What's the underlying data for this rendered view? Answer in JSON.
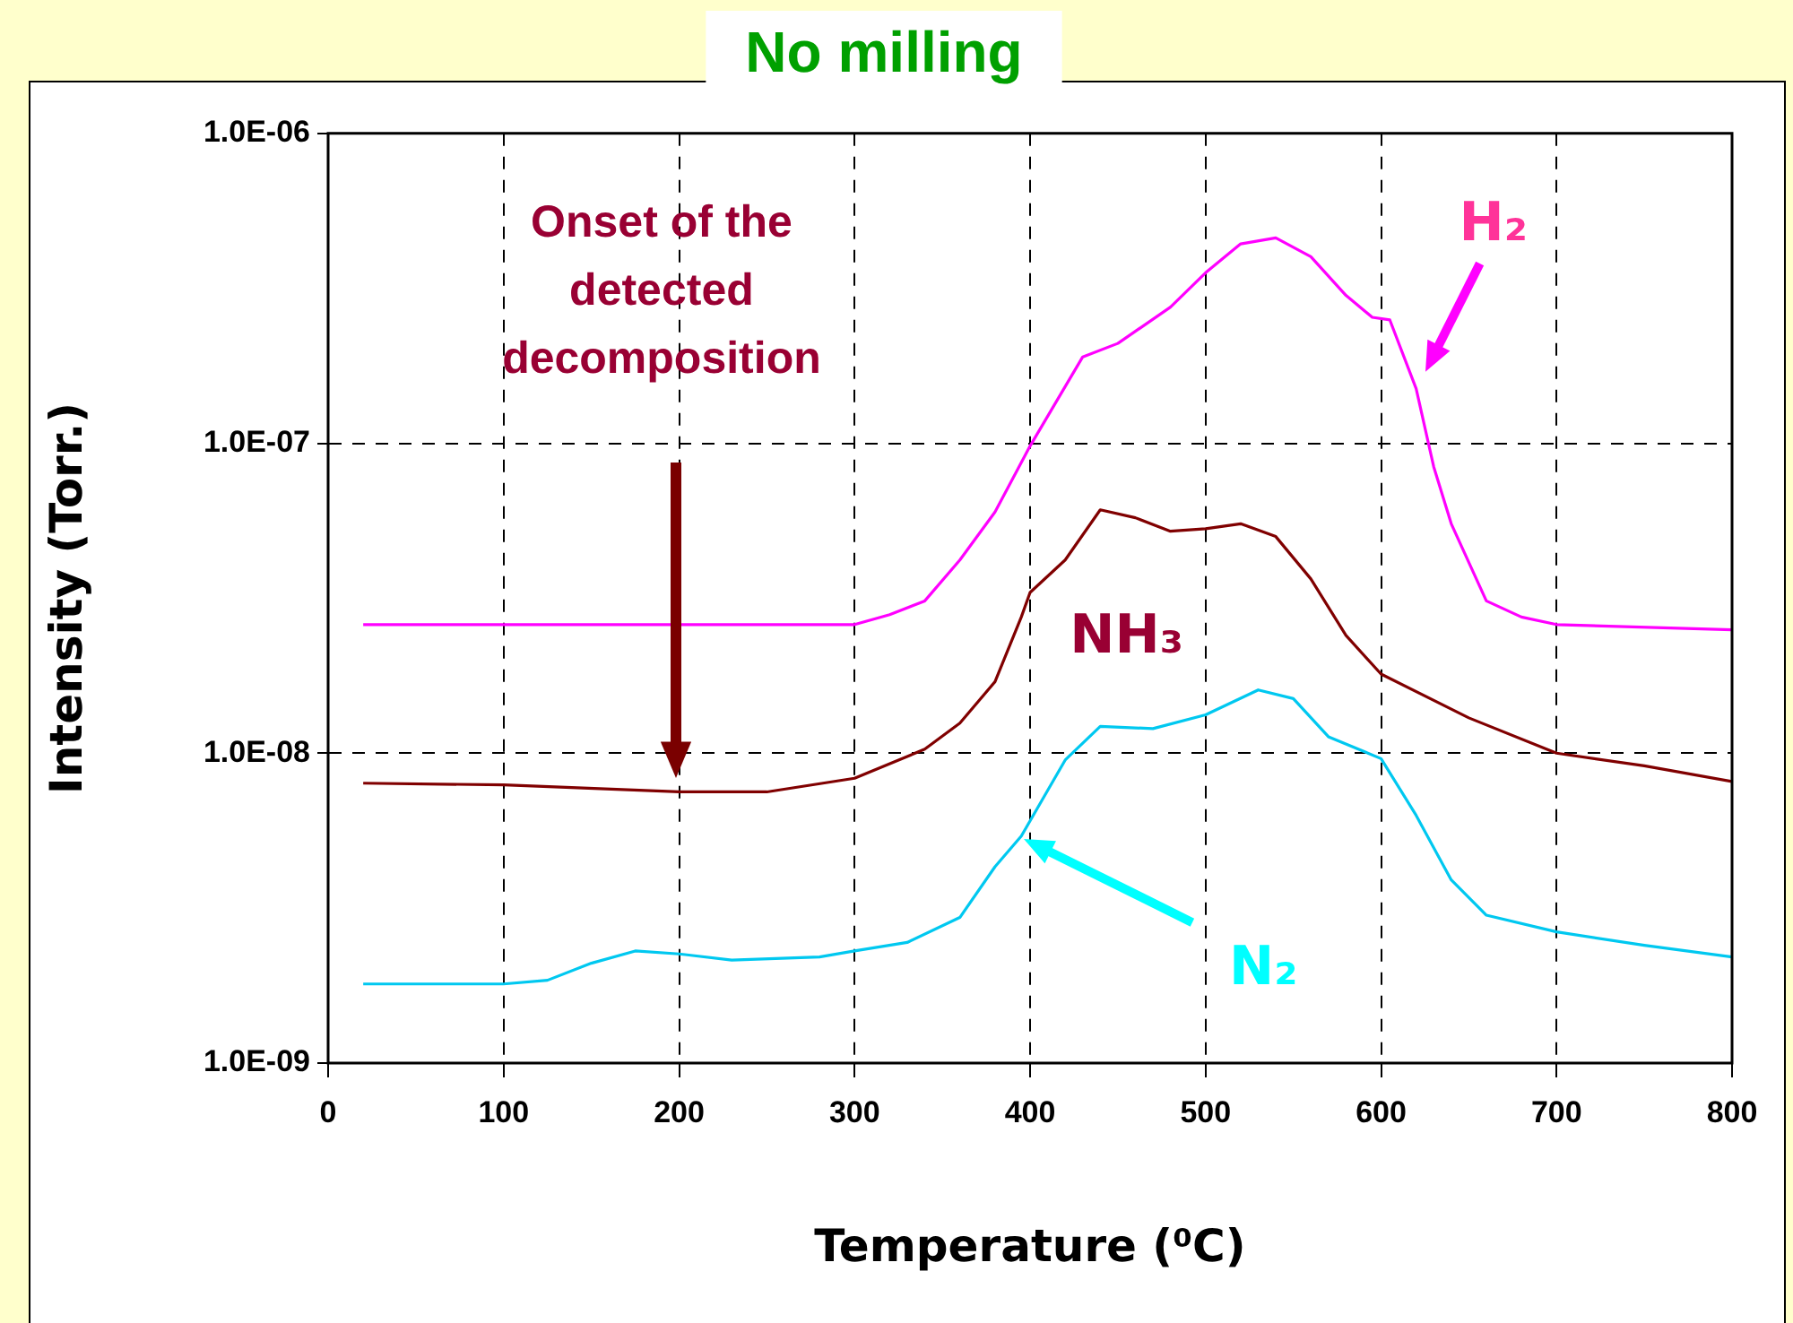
{
  "chart_data": {
    "type": "line",
    "title": "No milling",
    "xlabel": "Temperature (⁰C)",
    "ylabel": "Intensity (Torr.)",
    "log": "y",
    "grid": true,
    "line_style": "solid",
    "marker": "none",
    "xlim": [
      0,
      800
    ],
    "xticks": [
      0,
      100,
      200,
      300,
      400,
      500,
      600,
      700,
      800
    ],
    "ylim": [
      1e-09,
      1e-06
    ],
    "yticks": [
      {
        "value": 1e-09,
        "label": "1.0E-09"
      },
      {
        "value": 1e-08,
        "label": "1.0E-08"
      },
      {
        "value": 1e-07,
        "label": "1.0E-07"
      },
      {
        "value": 1e-06,
        "label": "1.0E-06"
      }
    ],
    "annotations": [
      "Onset of the detected decomposition"
    ],
    "series": [
      {
        "name": "H₂",
        "color": "#ff00ff",
        "x": [
          20,
          100,
          200,
          300,
          320,
          340,
          360,
          380,
          400,
          430,
          450,
          480,
          500,
          520,
          540,
          560,
          580,
          595,
          605,
          620,
          630,
          640,
          660,
          680,
          700,
          800
        ],
        "values": [
          2.6e-08,
          2.6e-08,
          2.6e-08,
          2.6e-08,
          2.8e-08,
          3.1e-08,
          4.2e-08,
          6e-08,
          9.8e-08,
          1.9e-07,
          2.1e-07,
          2.75e-07,
          3.55e-07,
          4.4e-07,
          4.6e-07,
          4e-07,
          3e-07,
          2.55e-07,
          2.5e-07,
          1.5e-07,
          8.4e-08,
          5.5e-08,
          3.1e-08,
          2.75e-08,
          2.6e-08,
          2.5e-08
        ]
      },
      {
        "name": "NH₃",
        "color": "#800000",
        "x": [
          20,
          100,
          200,
          250,
          300,
          340,
          360,
          380,
          395,
          400,
          420,
          440,
          460,
          480,
          500,
          520,
          540,
          560,
          580,
          600,
          650,
          700,
          750,
          800
        ],
        "values": [
          8e-09,
          7.9e-09,
          7.5e-09,
          7.5e-09,
          8.3e-09,
          1.03e-08,
          1.25e-08,
          1.7e-08,
          2.75e-08,
          3.3e-08,
          4.2e-08,
          6.1e-08,
          5.75e-08,
          5.2e-08,
          5.3e-08,
          5.5e-08,
          5e-08,
          3.65e-08,
          2.4e-08,
          1.8e-08,
          1.3e-08,
          1e-08,
          9.1e-09,
          8.1e-09
        ]
      },
      {
        "name": "N₂",
        "color": "#00c8f0",
        "x": [
          20,
          100,
          125,
          150,
          175,
          200,
          230,
          280,
          300,
          330,
          360,
          380,
          395,
          420,
          440,
          470,
          500,
          530,
          550,
          570,
          600,
          620,
          640,
          660,
          700,
          750,
          800
        ],
        "values": [
          1.8e-09,
          1.8e-09,
          1.85e-09,
          2.1e-09,
          2.3e-09,
          2.25e-09,
          2.15e-09,
          2.2e-09,
          2.3e-09,
          2.45e-09,
          2.95e-09,
          4.3e-09,
          5.4e-09,
          9.5e-09,
          1.22e-08,
          1.2e-08,
          1.33e-08,
          1.6e-08,
          1.5e-08,
          1.13e-08,
          9.6e-09,
          6.3e-09,
          3.9e-09,
          3e-09,
          2.65e-09,
          2.4e-09,
          2.2e-09
        ]
      }
    ]
  }
}
